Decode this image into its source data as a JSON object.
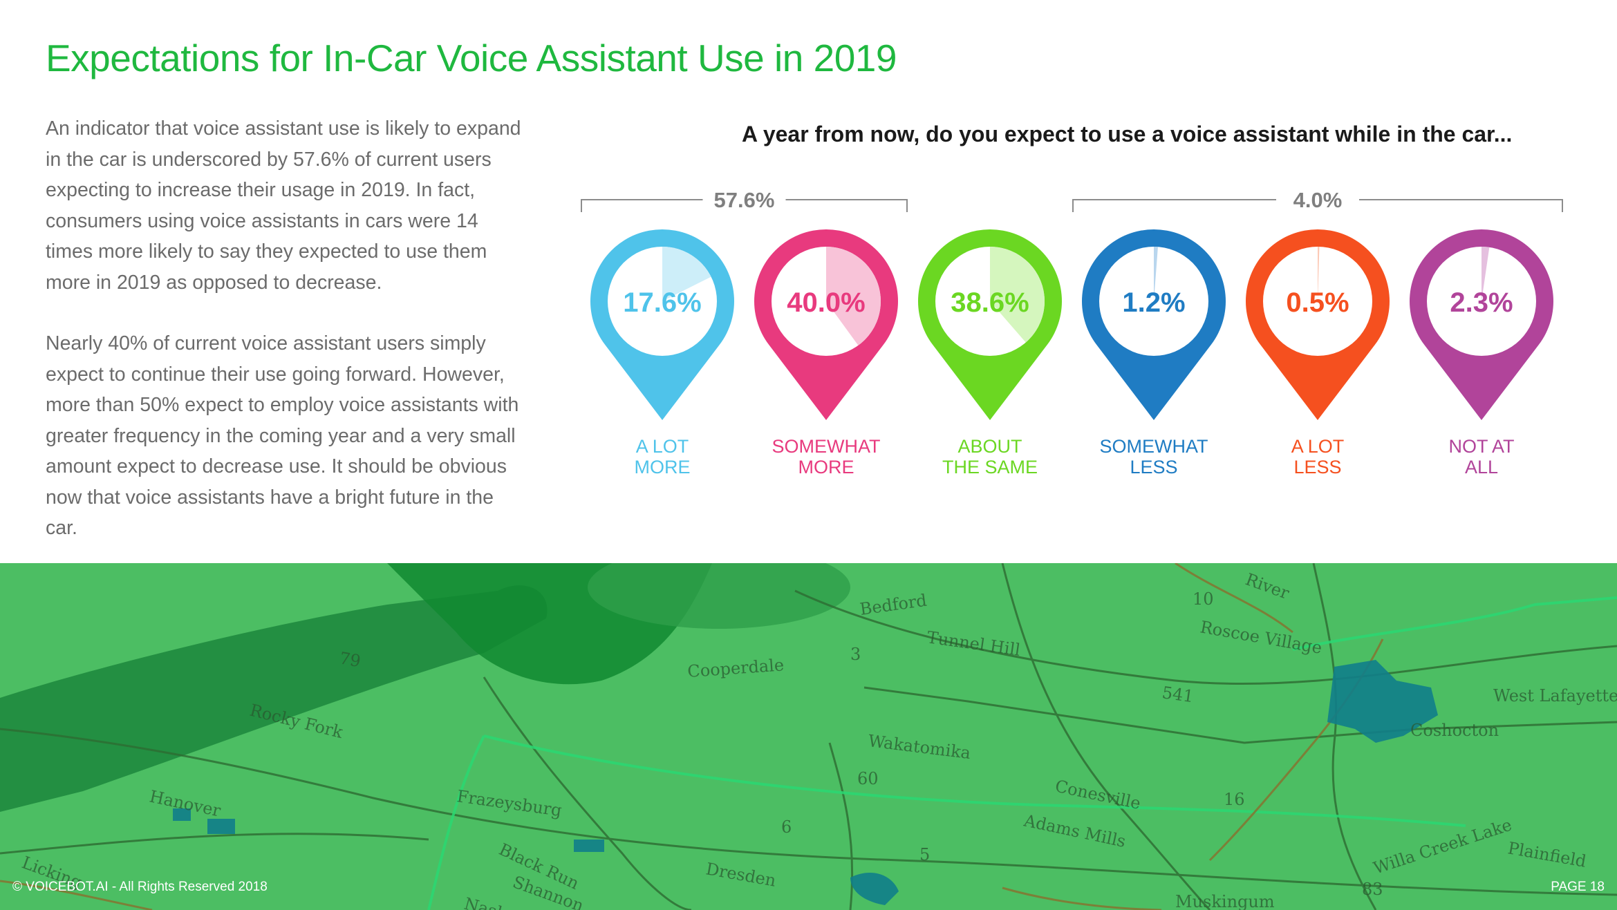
{
  "page": {
    "title": "Expectations for In-Car Voice Assistant Use in 2019",
    "paragraphs": [
      "An indicator that voice assistant use is likely to expand in the car is underscored by 57.6% of current users expecting to increase their usage in 2019. In fact, consumers using voice assistants in cars were 14 times more likely to say they expected to use them more in 2019 as opposed to decrease.",
      "Nearly 40% of current voice assistant users simply expect to continue their use going forward. However, more than 50% expect to employ voice assistants with greater frequency in the coming year and a very small amount expect to decrease use. It should be obvious now that voice assistants have a bright future in the car."
    ],
    "footer_left": "© VOICEBOT.AI - All Rights Reserved 2018",
    "footer_right": "PAGE 18"
  },
  "map": {
    "labels": [
      "Bedford",
      "Tunnel Hill",
      "Cooperdale",
      "Rocky Fork",
      "Wakatomika",
      "Conesville",
      "Adams Mills",
      "Frazeysburg",
      "Hanover",
      "Black Run",
      "Shannon",
      "Nashport",
      "Dresden",
      "Coshocton",
      "West Lafayette",
      "Plainfield",
      "Willa Creek Lake",
      "Roscoe Village",
      "River",
      "Muskingum",
      "Licking",
      "60",
      "16",
      "541",
      "83",
      "79",
      "3",
      "5",
      "6",
      "10"
    ]
  },
  "chart_data": {
    "type": "pie",
    "title": "A year from now, do you expect to use a voice assistant while in the car...",
    "categories": [
      "A LOT MORE",
      "SOMEWHAT MORE",
      "ABOUT THE SAME",
      "SOMEWHAT LESS",
      "A LOT LESS",
      "NOT AT ALL"
    ],
    "values": [
      17.6,
      40.0,
      38.6,
      1.2,
      0.5,
      2.3
    ],
    "value_labels": [
      "17.6%",
      "40.0%",
      "38.6%",
      "1.2%",
      "0.5%",
      "2.3%"
    ],
    "label_lines": [
      [
        "A LOT",
        "MORE"
      ],
      [
        "SOMEWHAT",
        "MORE"
      ],
      [
        "ABOUT",
        "THE SAME"
      ],
      [
        "SOMEWHAT",
        "LESS"
      ],
      [
        "A LOT",
        "LESS"
      ],
      [
        "NOT AT",
        "ALL"
      ]
    ],
    "colors": [
      "#4fc3ea",
      "#e83a7e",
      "#6bd722",
      "#1f7cc3",
      "#f5501f",
      "#b1449a"
    ],
    "light_colors": [
      "#cdeef9",
      "#f8c3d8",
      "#d5f6be",
      "#b9d6ee",
      "#fcc9b6",
      "#e5c0df"
    ],
    "groups": [
      {
        "label": "57.6%",
        "from_index": 0,
        "to_index": 1
      },
      {
        "label": "4.0%",
        "from_index": 3,
        "to_index": 5
      }
    ]
  }
}
